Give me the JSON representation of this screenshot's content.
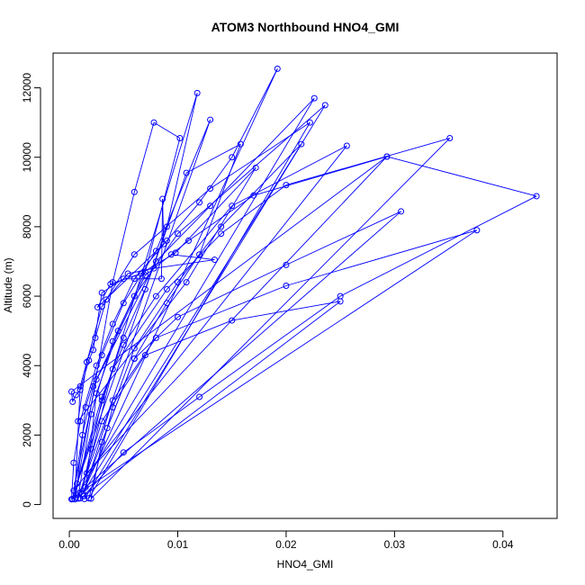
{
  "chart_data": {
    "type": "line",
    "title": "ATOM3 Northbound HNO4_GMI",
    "xlabel": "HNO4_GMI",
    "ylabel": "Altitude (m)",
    "xlim": [
      -0.0015,
      0.045
    ],
    "ylim": [
      -400,
      13000
    ],
    "x_ticks": [
      0.0,
      0.01,
      0.02,
      0.03,
      0.04
    ],
    "x_tick_labels": [
      "0.00",
      "0.01",
      "0.02",
      "0.03",
      "0.04"
    ],
    "y_ticks": [
      0,
      2000,
      4000,
      6000,
      8000,
      10000,
      12000
    ],
    "y_tick_labels": [
      "0",
      "2000",
      "4000",
      "6000",
      "8000",
      "10000",
      "12000"
    ],
    "grid": false,
    "series_color": "#0000ff",
    "marker": "open-circle",
    "points": [
      [
        0.0002,
        150
      ],
      [
        0.0004,
        1200
      ],
      [
        0.001,
        2400
      ],
      [
        0.0025,
        4000
      ],
      [
        0.004,
        5200
      ],
      [
        0.006,
        6500
      ],
      [
        0.009,
        7600
      ],
      [
        0.012,
        8700
      ],
      [
        0.015,
        10000
      ],
      [
        0.0192,
        12550
      ],
      [
        0.001,
        180
      ],
      [
        0.002,
        1600
      ],
      [
        0.003,
        3000
      ],
      [
        0.005,
        4800
      ],
      [
        0.007,
        6200
      ],
      [
        0.009,
        8000
      ],
      [
        0.0118,
        11850
      ],
      [
        0.0003,
        160
      ],
      [
        0.0012,
        2000
      ],
      [
        0.0022,
        3400
      ],
      [
        0.008,
        7000
      ],
      [
        0.013,
        8600
      ],
      [
        0.0226,
        11700
      ],
      [
        0.0006,
        200
      ],
      [
        0.0015,
        2800
      ],
      [
        0.003,
        4300
      ],
      [
        0.005,
        5800
      ],
      [
        0.008,
        7300
      ],
      [
        0.013,
        11080
      ],
      [
        0.0008,
        170
      ],
      [
        0.002,
        2600
      ],
      [
        0.004,
        4700
      ],
      [
        0.006,
        6000
      ],
      [
        0.01,
        7800
      ],
      [
        0.0236,
        11500
      ],
      [
        0.0014,
        160
      ],
      [
        0.0025,
        3200
      ],
      [
        0.0045,
        5000
      ],
      [
        0.007,
        6700
      ],
      [
        0.0102,
        10550
      ],
      [
        0.0078,
        11000
      ],
      [
        0.006,
        9000
      ],
      [
        0.004,
        6400
      ],
      [
        0.0005,
        150
      ],
      [
        0.001,
        3400
      ],
      [
        0.003,
        5700
      ],
      [
        0.006,
        7200
      ],
      [
        0.013,
        9100
      ],
      [
        0.0222,
        11000
      ],
      [
        0.0018,
        180
      ],
      [
        0.004,
        2800
      ],
      [
        0.006,
        4500
      ],
      [
        0.01,
        6400
      ],
      [
        0.014,
        8000
      ],
      [
        0.0214,
        10380
      ],
      [
        0.0012,
        300
      ],
      [
        0.0035,
        2200
      ],
      [
        0.006,
        4200
      ],
      [
        0.009,
        5800
      ],
      [
        0.012,
        7200
      ],
      [
        0.0158,
        10380
      ],
      [
        0.0108,
        9550
      ],
      [
        0.0007,
        600
      ],
      [
        0.003,
        3100
      ],
      [
        0.005,
        4600
      ],
      [
        0.008,
        6000
      ],
      [
        0.015,
        8600
      ],
      [
        0.0256,
        10330
      ],
      [
        0.0004,
        400
      ],
      [
        0.0025,
        3600
      ],
      [
        0.007,
        6600
      ],
      [
        0.011,
        7600
      ],
      [
        0.017,
        8900
      ],
      [
        0.0293,
        10020
      ],
      [
        0.0016,
        900
      ],
      [
        0.004,
        3900
      ],
      [
        0.009,
        6200
      ],
      [
        0.014,
        7800
      ],
      [
        0.02,
        9200
      ],
      [
        0.0351,
        10550
      ],
      [
        0.002,
        170
      ],
      [
        0.003,
        1800
      ],
      [
        0.006,
        4200
      ],
      [
        0.01,
        5400
      ],
      [
        0.02,
        6900
      ],
      [
        0.0306,
        8440
      ],
      [
        0.0015,
        500
      ],
      [
        0.004,
        3000
      ],
      [
        0.008,
        4800
      ],
      [
        0.02,
        6300
      ],
      [
        0.0376,
        7900
      ],
      [
        0.001,
        350
      ],
      [
        0.003,
        2400
      ],
      [
        0.007,
        4300
      ],
      [
        0.015,
        5300
      ],
      [
        0.025,
        5850
      ],
      [
        0.0013,
        240
      ],
      [
        0.005,
        1500
      ],
      [
        0.012,
        3100
      ],
      [
        0.025,
        6000
      ],
      [
        0.0431,
        8880
      ],
      [
        0.0293,
        10020
      ],
      [
        0.0002,
        3250
      ],
      [
        0.0003,
        2960
      ],
      [
        0.0006,
        3150
      ],
      [
        0.001,
        3300
      ],
      [
        0.0018,
        4150
      ],
      [
        0.0022,
        4450
      ],
      [
        0.003,
        6100
      ],
      [
        0.005,
        6500
      ],
      [
        0.0085,
        6500
      ],
      [
        0.0086,
        8800
      ],
      [
        0.0087,
        7500
      ],
      [
        0.0026,
        5680
      ],
      [
        0.0038,
        6350
      ],
      [
        0.0066,
        6650
      ],
      [
        0.0098,
        7250
      ],
      [
        0.0172,
        9700
      ],
      [
        0.0108,
        6400
      ],
      [
        0.0008,
        2400
      ],
      [
        0.0016,
        4100
      ],
      [
        0.0024,
        4800
      ],
      [
        0.0034,
        5900
      ],
      [
        0.0054,
        6650
      ],
      [
        0.0078,
        6800
      ],
      [
        0.0134,
        7050
      ],
      [
        0.0094,
        7200
      ]
    ]
  }
}
